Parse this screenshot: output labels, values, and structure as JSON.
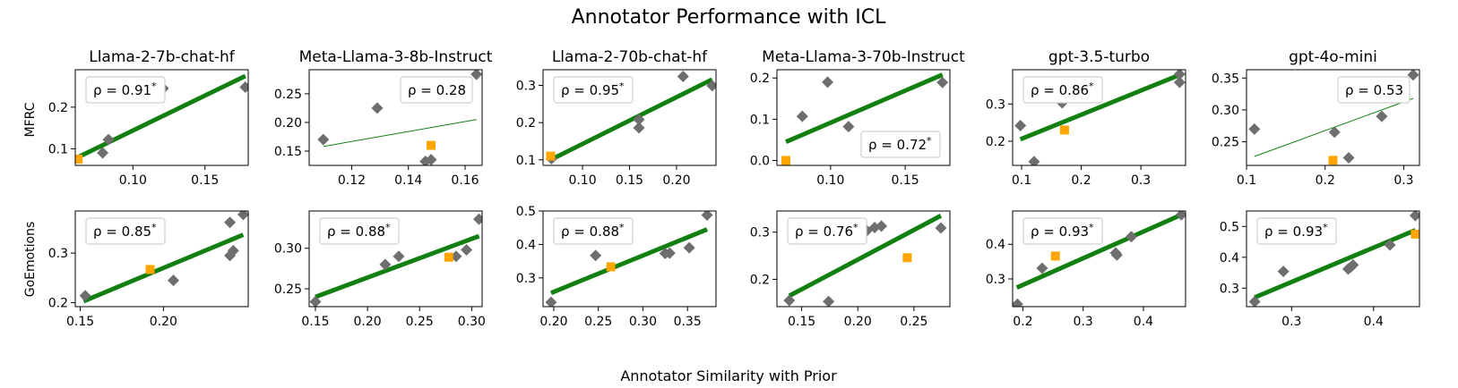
{
  "figure": {
    "title": "Annotator Performance with ICL",
    "xlabel": "Annotator Similarity with Prior",
    "rows": [
      "MFRC",
      "GoEmotions"
    ],
    "models": [
      "Llama-2-7b-chat-hf",
      "Meta-Llama-3-8b-Instruct",
      "Llama-2-70b-chat-hf",
      "Meta-Llama-3-70b-Instruct",
      "gpt-3.5-turbo",
      "gpt-4o-mini"
    ],
    "colors": {
      "diamond": "#6e6e6e",
      "square": "#ffa500",
      "fit": "#118011"
    }
  },
  "chart_data": [
    {
      "type": "scatter",
      "row": "MFRC",
      "model": "Llama-2-7b-chat-hf",
      "rho": "ρ = 0.91*",
      "significant": true,
      "rho_loc": "upper-left",
      "xlim": [
        0.06,
        0.18
      ],
      "ylim": [
        0.06,
        0.29
      ],
      "xticks": [
        0.1,
        0.15
      ],
      "yticks": [
        0.1,
        0.2
      ],
      "xtick_labels": [
        "0.10",
        "0.15"
      ],
      "ytick_labels": [
        "0.1",
        "0.2"
      ],
      "points": [
        [
          0.079,
          0.09
        ],
        [
          0.083,
          0.122
        ],
        [
          0.121,
          0.245
        ],
        [
          0.178,
          0.248
        ]
      ],
      "highlight": [
        [
          0.062,
          0.075
        ]
      ],
      "fit": [
        [
          0.062,
          0.08
        ],
        [
          0.178,
          0.275
        ]
      ]
    },
    {
      "type": "scatter",
      "row": "MFRC",
      "model": "Meta-Llama-3-8b-Instruct",
      "rho": "ρ = 0.28",
      "significant": false,
      "rho_loc": "upper-right",
      "xlim": [
        0.105,
        0.166
      ],
      "ylim": [
        0.125,
        0.292
      ],
      "xticks": [
        0.12,
        0.14,
        0.16
      ],
      "yticks": [
        0.15,
        0.2,
        0.25
      ],
      "xtick_labels": [
        "0.12",
        "0.14",
        "0.16"
      ],
      "ytick_labels": [
        "0.15",
        "0.20",
        "0.25"
      ],
      "points": [
        [
          0.11,
          0.17
        ],
        [
          0.129,
          0.225
        ],
        [
          0.146,
          0.132
        ],
        [
          0.148,
          0.135
        ],
        [
          0.164,
          0.284
        ]
      ],
      "highlight": [
        [
          0.148,
          0.16
        ]
      ],
      "fit": [
        [
          0.11,
          0.158
        ],
        [
          0.164,
          0.205
        ]
      ]
    },
    {
      "type": "scatter",
      "row": "MFRC",
      "model": "Llama-2-70b-chat-hf",
      "rho": "ρ = 0.95*",
      "significant": true,
      "rho_loc": "upper-left",
      "xlim": [
        0.058,
        0.242
      ],
      "ylim": [
        0.085,
        0.342
      ],
      "xticks": [
        0.1,
        0.15,
        0.2
      ],
      "yticks": [
        0.1,
        0.2,
        0.3
      ],
      "xtick_labels": [
        "0.10",
        "0.15",
        "0.20"
      ],
      "ytick_labels": [
        "0.1",
        "0.2",
        "0.3"
      ],
      "points": [
        [
          0.067,
          0.103
        ],
        [
          0.16,
          0.186
        ],
        [
          0.16,
          0.208
        ],
        [
          0.207,
          0.324
        ],
        [
          0.238,
          0.299
        ]
      ],
      "highlight": [
        [
          0.066,
          0.11
        ]
      ],
      "fit": [
        [
          0.066,
          0.1
        ],
        [
          0.238,
          0.316
        ]
      ]
    },
    {
      "type": "scatter",
      "row": "MFRC",
      "model": "Meta-Llama-3-70b-Instruct",
      "rho": "ρ = 0.72*",
      "significant": true,
      "rho_loc": "lower-right",
      "xlim": [
        0.064,
        0.18
      ],
      "ylim": [
        -0.012,
        0.22
      ],
      "xticks": [
        0.1,
        0.15
      ],
      "yticks": [
        0.0,
        0.1,
        0.2
      ],
      "xtick_labels": [
        "0.10",
        "0.15"
      ],
      "ytick_labels": [
        "0.0",
        "0.1",
        "0.2"
      ],
      "points": [
        [
          0.081,
          0.107
        ],
        [
          0.098,
          0.19
        ],
        [
          0.112,
          0.082
        ],
        [
          0.175,
          0.189
        ]
      ],
      "highlight": [
        [
          0.07,
          0.0
        ]
      ],
      "fit": [
        [
          0.07,
          0.045
        ],
        [
          0.175,
          0.208
        ]
      ]
    },
    {
      "type": "scatter",
      "row": "MFRC",
      "model": "gpt-3.5-turbo",
      "rho": "ρ = 0.86*",
      "significant": true,
      "rho_loc": "upper-left",
      "xlim": [
        0.085,
        0.375
      ],
      "ylim": [
        0.135,
        0.392
      ],
      "xticks": [
        0.1,
        0.2,
        0.3
      ],
      "yticks": [
        0.2,
        0.3
      ],
      "xtick_labels": [
        "0.1",
        "0.2",
        "0.3"
      ],
      "ytick_labels": [
        "0.2",
        "0.3"
      ],
      "points": [
        [
          0.098,
          0.242
        ],
        [
          0.121,
          0.145
        ],
        [
          0.168,
          0.303
        ],
        [
          0.365,
          0.358
        ],
        [
          0.365,
          0.38
        ]
      ],
      "highlight": [
        [
          0.172,
          0.23
        ]
      ],
      "fit": [
        [
          0.098,
          0.205
        ],
        [
          0.365,
          0.378
        ]
      ]
    },
    {
      "type": "scatter",
      "row": "MFRC",
      "model": "gpt-4o-mini",
      "rho": "ρ = 0.53",
      "significant": false,
      "rho_loc": "upper-right",
      "xlim": [
        0.1,
        0.32
      ],
      "ylim": [
        0.213,
        0.363
      ],
      "xticks": [
        0.1,
        0.2,
        0.3
      ],
      "yticks": [
        0.25,
        0.3,
        0.35
      ],
      "xtick_labels": [
        "0.1",
        "0.2",
        "0.3"
      ],
      "ytick_labels": [
        "0.25",
        "0.30",
        "0.35"
      ],
      "points": [
        [
          0.11,
          0.27
        ],
        [
          0.212,
          0.265
        ],
        [
          0.23,
          0.225
        ],
        [
          0.272,
          0.29
        ],
        [
          0.312,
          0.355
        ]
      ],
      "highlight": [
        [
          0.21,
          0.221
        ]
      ],
      "fit": [
        [
          0.11,
          0.227
        ],
        [
          0.312,
          0.318
        ]
      ]
    },
    {
      "type": "scatter",
      "row": "GoEmotions",
      "model": "Llama-2-7b-chat-hf",
      "rho": "ρ = 0.85*",
      "significant": true,
      "rho_loc": "upper-left",
      "xlim": [
        0.147,
        0.251
      ],
      "ylim": [
        0.192,
        0.385
      ],
      "xticks": [
        0.15,
        0.2
      ],
      "yticks": [
        0.2,
        0.3
      ],
      "xtick_labels": [
        "0.15",
        "0.20"
      ],
      "ytick_labels": [
        "0.2",
        "0.3"
      ],
      "points": [
        [
          0.153,
          0.214
        ],
        [
          0.206,
          0.245
        ],
        [
          0.24,
          0.295
        ],
        [
          0.24,
          0.362
        ],
        [
          0.242,
          0.305
        ],
        [
          0.248,
          0.378
        ]
      ],
      "highlight": [
        [
          0.192,
          0.267
        ]
      ],
      "fit": [
        [
          0.152,
          0.203
        ],
        [
          0.248,
          0.337
        ]
      ]
    },
    {
      "type": "scatter",
      "row": "GoEmotions",
      "model": "Meta-Llama-3-8b-Instruct",
      "rho": "ρ = 0.88*",
      "significant": true,
      "rho_loc": "upper-left",
      "xlim": [
        0.144,
        0.31
      ],
      "ylim": [
        0.228,
        0.346
      ],
      "xticks": [
        0.15,
        0.2,
        0.25,
        0.3
      ],
      "yticks": [
        0.25,
        0.3
      ],
      "xtick_labels": [
        "0.15",
        "0.20",
        "0.25",
        "0.30"
      ],
      "ytick_labels": [
        "0.25",
        "0.30"
      ],
      "points": [
        [
          0.15,
          0.234
        ],
        [
          0.217,
          0.28
        ],
        [
          0.23,
          0.29
        ],
        [
          0.285,
          0.29
        ],
        [
          0.295,
          0.298
        ],
        [
          0.307,
          0.336
        ]
      ],
      "highlight": [
        [
          0.278,
          0.289
        ]
      ],
      "fit": [
        [
          0.15,
          0.24
        ],
        [
          0.307,
          0.315
        ]
      ]
    },
    {
      "type": "scatter",
      "row": "GoEmotions",
      "model": "Llama-2-70b-chat-hf",
      "rho": "ρ = 0.88*",
      "significant": true,
      "rho_loc": "upper-left",
      "xlim": [
        0.188,
        0.382
      ],
      "ylim": [
        0.214,
        0.5
      ],
      "xticks": [
        0.2,
        0.25,
        0.3,
        0.35
      ],
      "yticks": [
        0.3,
        0.4,
        0.5
      ],
      "xtick_labels": [
        "0.20",
        "0.25",
        "0.30",
        "0.35"
      ],
      "ytick_labels": [
        "0.3",
        "0.4",
        "0.5"
      ],
      "points": [
        [
          0.197,
          0.227
        ],
        [
          0.247,
          0.367
        ],
        [
          0.325,
          0.373
        ],
        [
          0.33,
          0.374
        ],
        [
          0.352,
          0.39
        ],
        [
          0.372,
          0.488
        ]
      ],
      "highlight": [
        [
          0.264,
          0.333
        ]
      ],
      "fit": [
        [
          0.197,
          0.255
        ],
        [
          0.372,
          0.445
        ]
      ]
    },
    {
      "type": "scatter",
      "row": "GoEmotions",
      "model": "Meta-Llama-3-70b-Instruct",
      "rho": "ρ = 0.76*",
      "significant": true,
      "rho_loc": "upper-left",
      "xlim": [
        0.128,
        0.282
      ],
      "ylim": [
        0.142,
        0.345
      ],
      "xticks": [
        0.15,
        0.2,
        0.25
      ],
      "yticks": [
        0.2,
        0.3
      ],
      "xtick_labels": [
        "0.15",
        "0.20",
        "0.25"
      ],
      "ytick_labels": [
        "0.2",
        "0.3"
      ],
      "points": [
        [
          0.139,
          0.155
        ],
        [
          0.174,
          0.153
        ],
        [
          0.208,
          0.303
        ],
        [
          0.215,
          0.31
        ],
        [
          0.221,
          0.313
        ],
        [
          0.274,
          0.309
        ]
      ],
      "highlight": [
        [
          0.244,
          0.246
        ]
      ],
      "fit": [
        [
          0.139,
          0.165
        ],
        [
          0.274,
          0.335
        ]
      ]
    },
    {
      "type": "scatter",
      "row": "GoEmotions",
      "model": "gpt-3.5-turbo",
      "rho": "ρ = 0.93*",
      "significant": true,
      "rho_loc": "upper-left",
      "xlim": [
        0.183,
        0.47
      ],
      "ylim": [
        0.22,
        0.496
      ],
      "xticks": [
        0.2,
        0.3,
        0.4
      ],
      "yticks": [
        0.3,
        0.4
      ],
      "xtick_labels": [
        "0.2",
        "0.3",
        "0.4"
      ],
      "ytick_labels": [
        "0.3",
        "0.4"
      ],
      "points": [
        [
          0.191,
          0.227
        ],
        [
          0.232,
          0.331
        ],
        [
          0.354,
          0.375
        ],
        [
          0.356,
          0.369
        ],
        [
          0.38,
          0.422
        ],
        [
          0.463,
          0.485
        ]
      ],
      "highlight": [
        [
          0.254,
          0.366
        ]
      ],
      "fit": [
        [
          0.19,
          0.275
        ],
        [
          0.463,
          0.485
        ]
      ]
    },
    {
      "type": "scatter",
      "row": "GoEmotions",
      "model": "gpt-4o-mini",
      "rho": "ρ = 0.93*",
      "significant": true,
      "rho_loc": "upper-left",
      "xlim": [
        0.245,
        0.456
      ],
      "ylim": [
        0.24,
        0.55
      ],
      "xticks": [
        0.3,
        0.4
      ],
      "yticks": [
        0.3,
        0.4,
        0.5
      ],
      "xtick_labels": [
        "0.3",
        "0.4"
      ],
      "ytick_labels": [
        "0.3",
        "0.4",
        "0.5"
      ],
      "points": [
        [
          0.255,
          0.256
        ],
        [
          0.29,
          0.354
        ],
        [
          0.369,
          0.362
        ],
        [
          0.372,
          0.368
        ],
        [
          0.375,
          0.375
        ],
        [
          0.42,
          0.44
        ],
        [
          0.451,
          0.535
        ]
      ],
      "highlight": [
        [
          0.451,
          0.475
        ]
      ],
      "fit": [
        [
          0.255,
          0.27
        ],
        [
          0.451,
          0.488
        ]
      ]
    }
  ]
}
